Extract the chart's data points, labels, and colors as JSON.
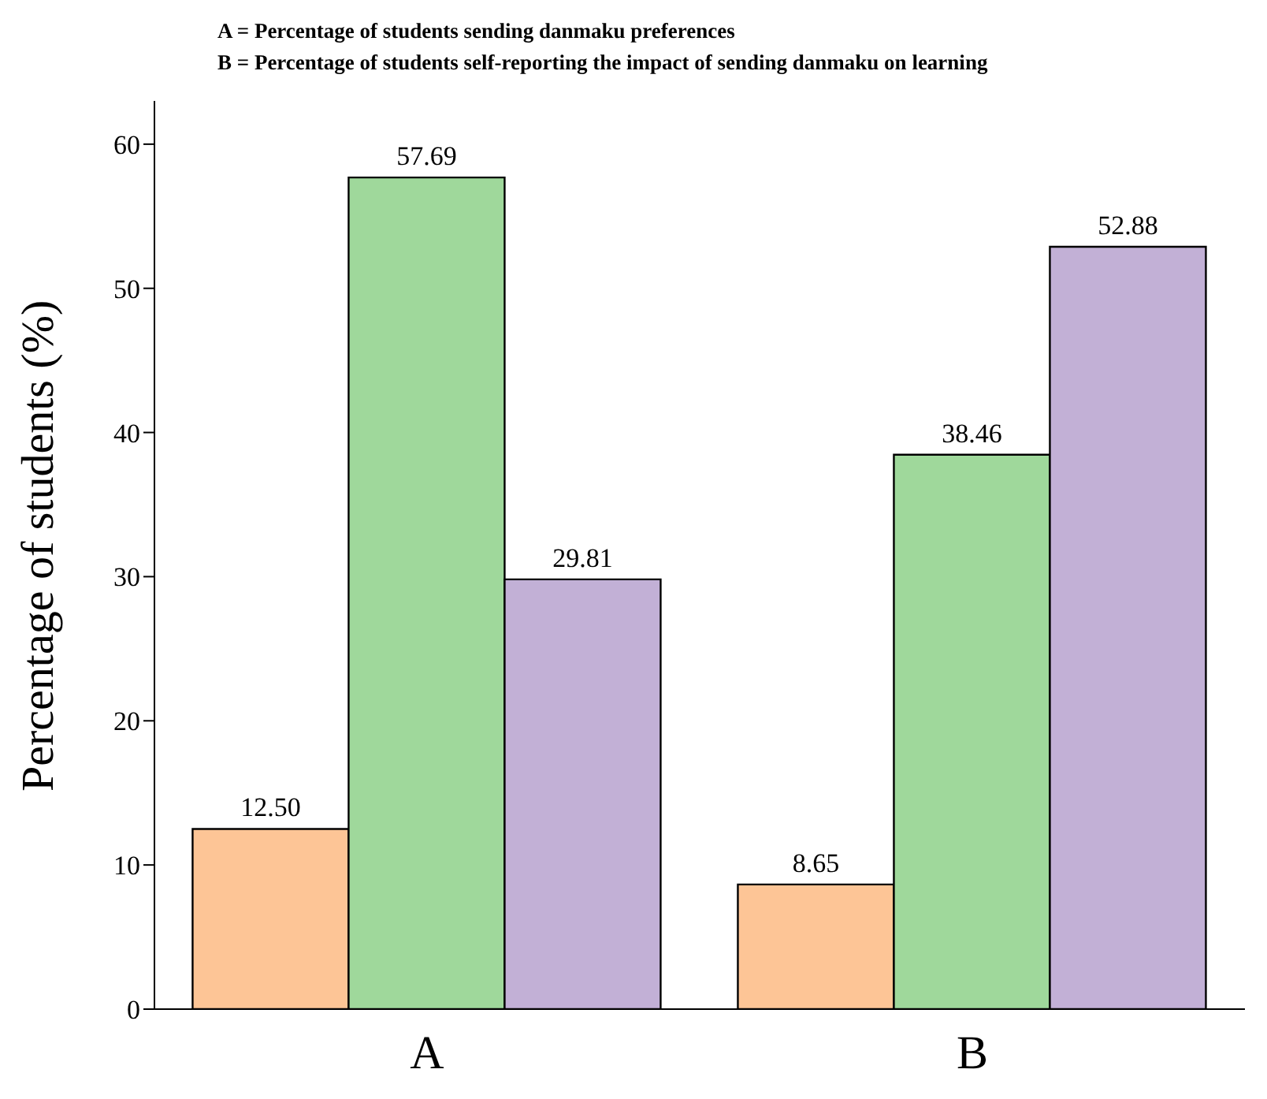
{
  "chart_data": {
    "type": "bar",
    "ylabel": "Percentage of students (%)",
    "categories": [
      "A",
      "B"
    ],
    "annotations": [
      "A = Percentage of students sending danmaku preferences",
      "B = Percentage of students self-reporting the impact of sending danmaku on learning"
    ],
    "series": [
      {
        "color": "#fdc596",
        "values": [
          12.5,
          8.65
        ],
        "value_labels": [
          "12.50",
          "8.65"
        ]
      },
      {
        "color": "#9fd89b",
        "values": [
          57.69,
          38.46
        ],
        "value_labels": [
          "57.69",
          "38.46"
        ]
      },
      {
        "color": "#c2b0d6",
        "values": [
          29.81,
          52.88
        ],
        "value_labels": [
          "29.81",
          "52.88"
        ]
      }
    ],
    "ylim": [
      0,
      63
    ],
    "yticks": [
      0,
      10,
      20,
      30,
      40,
      50,
      60
    ],
    "grid": false,
    "legend": false
  }
}
